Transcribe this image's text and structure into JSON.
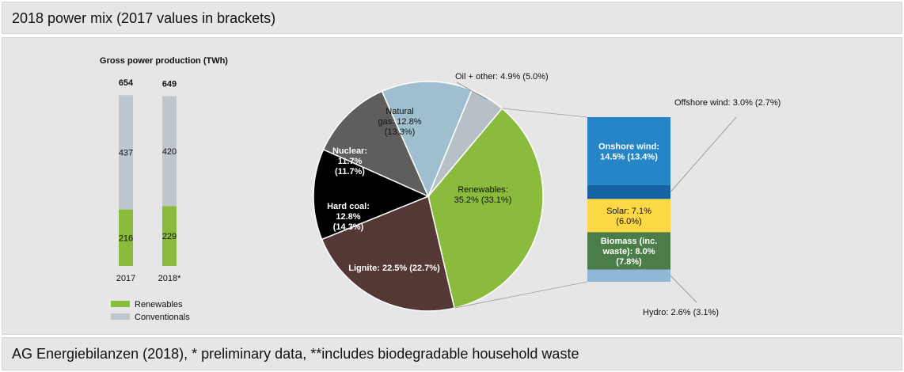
{
  "header": {
    "title": "2018 power mix (2017 values in brackets)"
  },
  "footer": {
    "source": "AG Energiebilanzen (2018), * preliminary data, **includes biodegradable household waste"
  },
  "colors": {
    "renewables": "#8bbb3c",
    "conventionals": "#bfc6cc",
    "lignite": "#533835",
    "hard_coal": "#000000",
    "nuclear": "#5e5e5c",
    "natural_gas": "#9fbfcf",
    "oil": "#b7c0c6",
    "onshore": "#2685c6",
    "offshore": "#1563a3",
    "solar": "#fdd845",
    "biomass": "#4a7d48",
    "hydro": "#90b6d8",
    "panel": "#e6e6e6"
  },
  "chart_data": [
    {
      "type": "bar",
      "stacked": true,
      "title": "Gross power production (TWh)",
      "categories": [
        "2017",
        "2018*"
      ],
      "totals": [
        "654",
        "649"
      ],
      "series": [
        {
          "name": "Renewables",
          "values": [
            216,
            229
          ],
          "color_key": "renewables"
        },
        {
          "name": "Conventionals",
          "values": [
            437,
            420
          ],
          "color_key": "conventionals"
        }
      ],
      "legend": "bottom"
    },
    {
      "type": "pie",
      "slices": [
        {
          "key": "renewables",
          "value": 35.2,
          "label_lines": [
            "Renewables:",
            "35.2% (33.1%)"
          ],
          "label_color": "#111111",
          "bold": false
        },
        {
          "key": "lignite",
          "value": 22.5,
          "label_lines": [
            "Lignite: 22.5% (22.7%)"
          ],
          "label_color": "#ffffff",
          "bold": true
        },
        {
          "key": "hard_coal",
          "value": 12.8,
          "label_lines": [
            "Hard coal:",
            "12.8%",
            "(14.3%)"
          ],
          "label_color": "#ffffff",
          "bold": true
        },
        {
          "key": "nuclear",
          "value": 11.7,
          "label_lines": [
            "Nuclear:",
            "11.7%",
            "(11.7%)"
          ],
          "label_color": "#ffffff",
          "bold": true
        },
        {
          "key": "natural_gas",
          "value": 12.8,
          "label_lines": [
            "Natural",
            "gas: 12.8%",
            "(13.3%)"
          ],
          "label_color": "#111111",
          "bold": false
        },
        {
          "key": "oil",
          "value": 4.9,
          "label_lines": [
            "Oil + other: 4.9% (5.0%)"
          ],
          "label_color": "#111111",
          "bold": false,
          "outside": true
        }
      ]
    },
    {
      "type": "bar",
      "stacked": true,
      "title": "",
      "categories": [
        "Renewables"
      ],
      "series": [
        {
          "name": "Onshore wind",
          "values": [
            14.5
          ],
          "color_key": "onshore",
          "label_lines": [
            "Onshore wind:",
            "14.5% (13.4%)"
          ],
          "inside": true
        },
        {
          "name": "Offshore wind",
          "values": [
            3.0
          ],
          "color_key": "offshore",
          "label_lines": [
            "Offshore wind: 3.0% (2.7%)"
          ],
          "inside": false
        },
        {
          "name": "Solar",
          "values": [
            7.1
          ],
          "color_key": "solar",
          "label_lines": [
            "Solar: 7.1%",
            "(6.0%)"
          ],
          "inside": true
        },
        {
          "name": "Biomass",
          "values": [
            8.0
          ],
          "color_key": "biomass",
          "label_lines": [
            "Biomass (inc.",
            "waste): 8.0%",
            "(7.8%)"
          ],
          "inside": true
        },
        {
          "name": "Hydro",
          "values": [
            2.6
          ],
          "color_key": "hydro",
          "label_lines": [
            "Hydro: 2.6% (3.1%)"
          ],
          "inside": false
        }
      ]
    }
  ]
}
